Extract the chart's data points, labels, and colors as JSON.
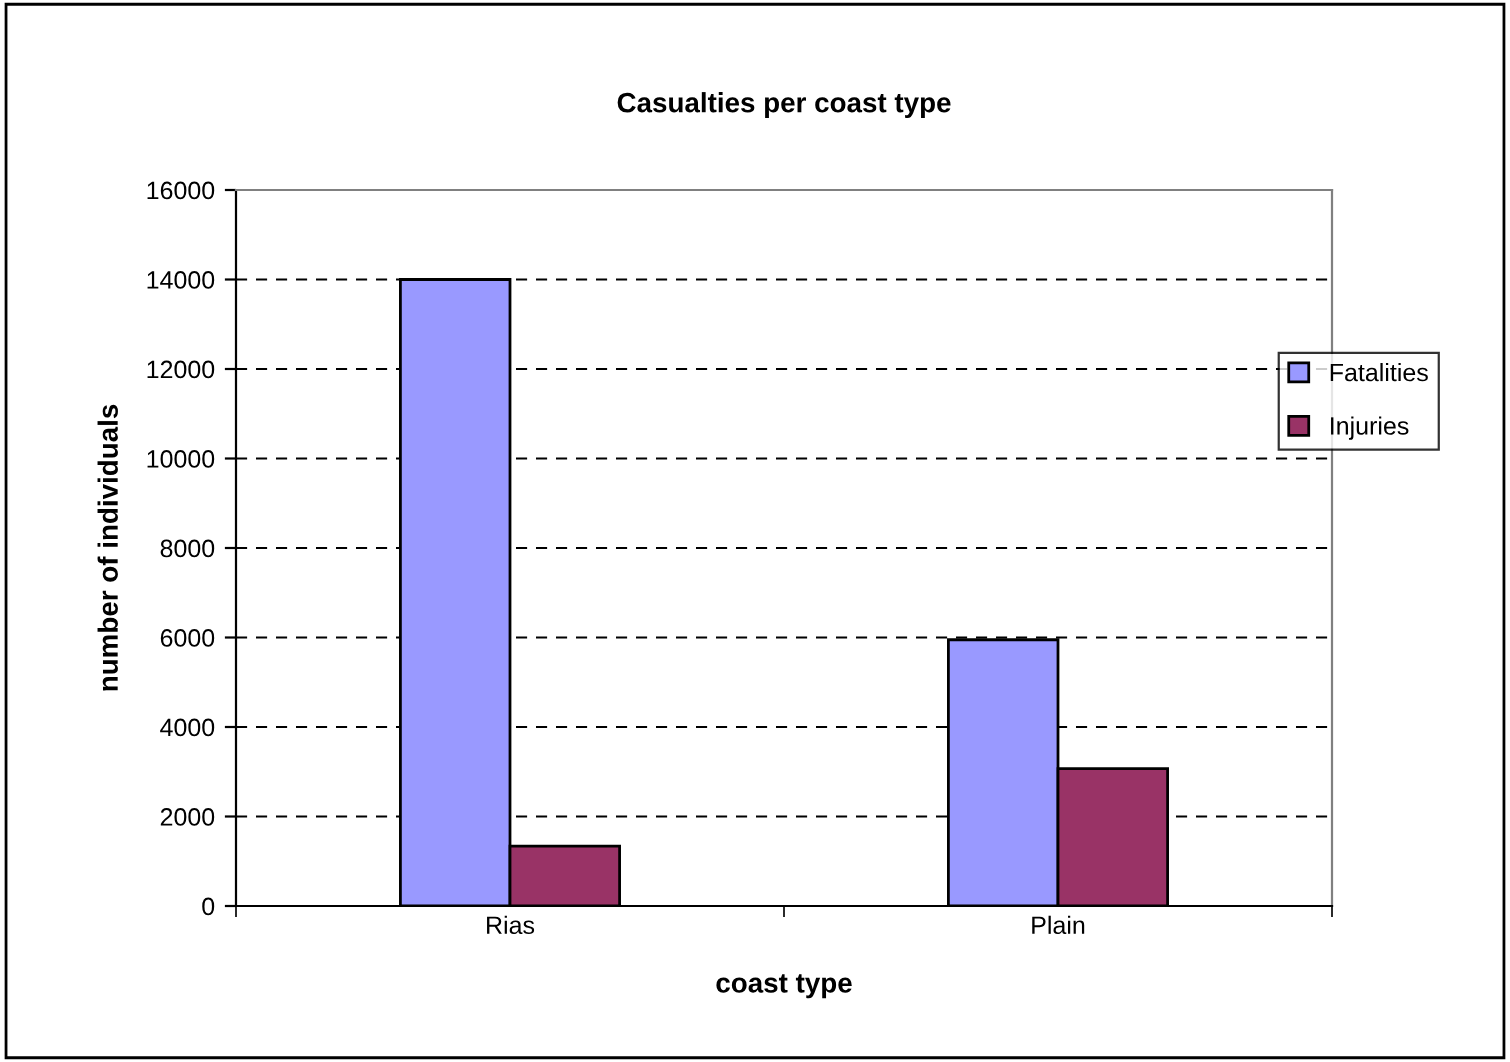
{
  "chart_data": {
    "type": "bar",
    "title": "Casualties per coast type",
    "xlabel": "coast type",
    "ylabel": "number of individuals",
    "categories": [
      "Rias",
      "Plain"
    ],
    "series": [
      {
        "name": "Fatalities",
        "color": "#9999ff",
        "values": [
          14000,
          5950
        ]
      },
      {
        "name": "Injuries",
        "color": "#993366",
        "values": [
          1340,
          3070
        ]
      }
    ],
    "ylim": [
      0,
      16000
    ],
    "yticks": [
      0,
      2000,
      4000,
      6000,
      8000,
      10000,
      12000,
      14000,
      16000
    ],
    "grid": "y",
    "legend": "right"
  }
}
